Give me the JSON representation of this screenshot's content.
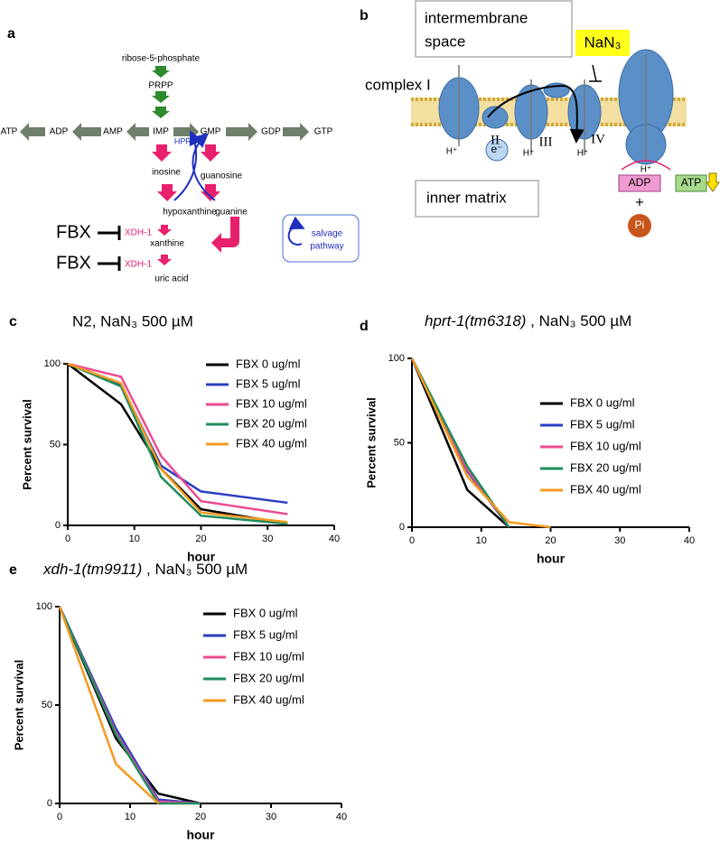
{
  "pathway": {
    "panel": "a",
    "ribose": "ribose-5-phosphate",
    "prpp": "PRPP",
    "row": [
      "ATP",
      "ADP",
      "AMP",
      "IMP",
      "GMP",
      "GDP",
      "GTP"
    ],
    "hprt": "HPRT",
    "inosine": "inosine",
    "guanosine": "guanosine",
    "hypoxanthine": "hypoxanthine",
    "guanine": "guanine",
    "inhibitor_1": "FBX",
    "enzyme_1": "XDH-1",
    "xanthine": "xanthine",
    "inhibitor_2": "FBX",
    "enzyme_2": "XDH-1",
    "uric_acid": "uric acid",
    "salvage": [
      "salvage",
      "pathway"
    ]
  },
  "mitochondria": {
    "panel": "b",
    "intermembrane": [
      "intermembrane",
      "space"
    ],
    "inhibitor": "NaN₃",
    "complex_1": "complex I",
    "complexes": [
      "II",
      "III",
      "IV"
    ],
    "protons": [
      "H⁺",
      "H⁺",
      "H⁺",
      "H⁺"
    ],
    "electron": "e⁻",
    "matrix": "inner matrix",
    "adp": "ADP",
    "plus": "+",
    "pi": "Pi",
    "atp": "ATP"
  },
  "chart_data": [
    {
      "type": "line",
      "panel": "c",
      "title": "N2, NaN₃ 500 µM",
      "x_label": "hour",
      "y_label": "Percent survival",
      "x": [
        0,
        8,
        14,
        20,
        33
      ],
      "xlim": [
        0,
        40
      ],
      "xticks": [
        0,
        10,
        20,
        30,
        40
      ],
      "ylim": [
        0,
        100
      ],
      "yticks": [
        0,
        50,
        100
      ],
      "series": [
        {
          "name": "FBX 0 ug/ml",
          "color": "#000000",
          "values": [
            100,
            75,
            35,
            10,
            1
          ]
        },
        {
          "name": "FBX 5 ug/ml",
          "color": "#2b3fc0",
          "values": [
            100,
            87,
            37,
            21,
            14
          ]
        },
        {
          "name": "FBX 10 ug/ml",
          "color": "#ec4b92",
          "values": [
            100,
            92,
            43,
            15,
            7
          ]
        },
        {
          "name": "FBX 20 ug/ml",
          "color": "#1f8d5c",
          "values": [
            100,
            86,
            30,
            6,
            1
          ]
        },
        {
          "name": "FBX 40 ug/ml",
          "color": "#f59a1f",
          "values": [
            100,
            88,
            35,
            8,
            2
          ]
        }
      ]
    },
    {
      "type": "line",
      "panel": "d",
      "title_strain": "hprt-1(tm6318)",
      "title": " , NaN₃ 500 µM",
      "x_label": "hour",
      "y_label": "Percent survival",
      "x": [
        0,
        8,
        14,
        20
      ],
      "xlim": [
        0,
        40
      ],
      "xticks": [
        0,
        10,
        20,
        30,
        40
      ],
      "ylim": [
        0,
        100
      ],
      "yticks": [
        0,
        50,
        100
      ],
      "series": [
        {
          "name": "FBX 0 ug/ml",
          "color": "#000000",
          "values": [
            100,
            22,
            0,
            null
          ]
        },
        {
          "name": "FBX 5 ug/ml",
          "color": "#2b3fc0",
          "values": [
            100,
            33,
            0,
            null
          ]
        },
        {
          "name": "FBX 10 ug/ml",
          "color": "#ec4b92",
          "values": [
            100,
            34,
            0,
            null
          ]
        },
        {
          "name": "FBX 20 ug/ml",
          "color": "#1f8d5c",
          "values": [
            100,
            36,
            0,
            null
          ]
        },
        {
          "name": "FBX 40 ug/ml",
          "color": "#f59a1f",
          "values": [
            100,
            30,
            3,
            0
          ]
        }
      ]
    },
    {
      "type": "line",
      "panel": "e",
      "title_strain": "xdh-1(tm9911)",
      "title": " , NaN₃ 500 µM",
      "x_label": "hour",
      "y_label": "Percent survival",
      "x": [
        0,
        8,
        14,
        20
      ],
      "xlim": [
        0,
        40
      ],
      "xticks": [
        0,
        10,
        20,
        30,
        40
      ],
      "ylim": [
        0,
        100
      ],
      "yticks": [
        0,
        50,
        100
      ],
      "series": [
        {
          "name": "FBX 0 ug/ml",
          "color": "#000000",
          "values": [
            100,
            33,
            5,
            0
          ]
        },
        {
          "name": "FBX 5 ug/ml",
          "color": "#2b3fc0",
          "values": [
            100,
            38,
            2,
            0
          ]
        },
        {
          "name": "FBX 10 ug/ml",
          "color": "#ec4b92",
          "values": [
            100,
            36,
            1,
            0
          ]
        },
        {
          "name": "FBX 20 ug/ml",
          "color": "#1f8d5c",
          "values": [
            100,
            35,
            0,
            0
          ]
        },
        {
          "name": "FBX 40 ug/ml",
          "color": "#f59a1f",
          "values": [
            100,
            20,
            0,
            null
          ]
        }
      ]
    }
  ]
}
